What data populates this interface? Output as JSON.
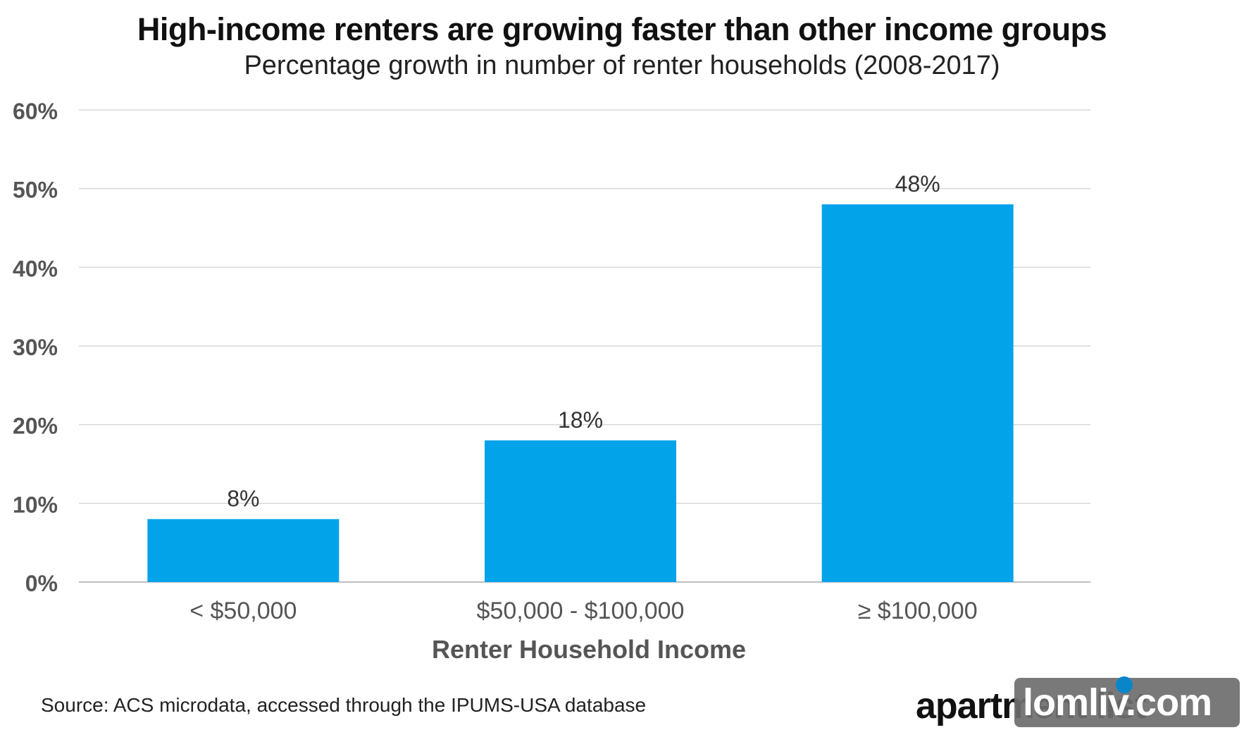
{
  "chart_data": {
    "type": "bar",
    "title": "High-income renters are growing faster than other income groups",
    "subtitle": "Percentage growth in number of renter households (2008-2017)",
    "xlabel": "Renter Household Income",
    "ylabel": "",
    "categories": [
      "< $50,000",
      "$50,000 - $100,000",
      "≥ $100,000"
    ],
    "values": [
      8,
      18,
      48
    ],
    "data_labels": [
      "8%",
      "18%",
      "48%"
    ],
    "ylim": [
      0,
      60
    ],
    "yticks": [
      0,
      10,
      20,
      30,
      40,
      50,
      60
    ],
    "ytick_labels": [
      "0%",
      "10%",
      "20%",
      "30%",
      "40%",
      "50%",
      "60%"
    ],
    "grid": true,
    "bar_color": "#03A3EA",
    "gridline_color": "#d9d9d9"
  },
  "footer": {
    "source": "Source: ACS microdata, accessed through the IPUMS-USA database",
    "logo_text": "apartment list",
    "overlay_text": "lomliv.com"
  }
}
